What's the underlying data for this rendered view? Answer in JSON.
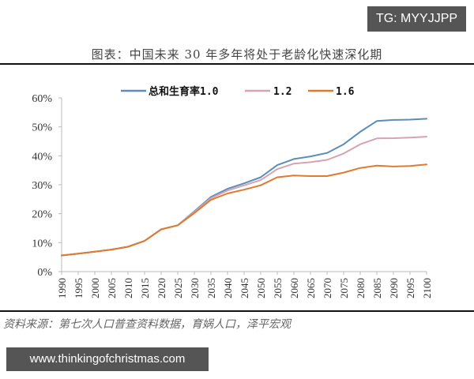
{
  "watermarks": {
    "top": "TG: MYYJJPP",
    "bottom": "www.thinkingofchristmas.com"
  },
  "figure": {
    "title": "图表：中国未来 30 年多年将处于老龄化快速深化期",
    "source": "资料来源：第七次人口普查资料数据，育娲人口，泽平宏观"
  },
  "chart_data": {
    "type": "line",
    "title": "图表：中国未来 30 年多年将处于老龄化快速深化期",
    "xlabel": "",
    "ylabel": "",
    "ylim": [
      0,
      60
    ],
    "yticks": [
      "0%",
      "10%",
      "20%",
      "30%",
      "40%",
      "50%",
      "60%"
    ],
    "x": [
      1990,
      1995,
      2000,
      2005,
      2010,
      2015,
      2020,
      2025,
      2030,
      2035,
      2040,
      2045,
      2050,
      2055,
      2060,
      2065,
      2070,
      2075,
      2080,
      2085,
      2090,
      2095,
      2100
    ],
    "xtick_labels": [
      "1990",
      "1995",
      "2000",
      "2005",
      "2010",
      "2015",
      "2020",
      "2025",
      "2030",
      "2035",
      "2040",
      "2045",
      "2050",
      "2055",
      "2060",
      "2065",
      "2070",
      "2075",
      "2080",
      "2085",
      "2090",
      "2095",
      "2100"
    ],
    "grid": false,
    "legend_position": "top",
    "series": [
      {
        "name": "总和生育率1.0",
        "color": "#5b8db8",
        "values": [
          5.6,
          6.2,
          6.9,
          7.6,
          8.6,
          10.6,
          14.6,
          16.0,
          20.8,
          25.8,
          28.6,
          30.5,
          32.6,
          36.8,
          38.9,
          39.8,
          41.0,
          44.0,
          48.3,
          52.0,
          52.4,
          52.5,
          52.8
        ]
      },
      {
        "name": "1.2",
        "color": "#d4a3b4",
        "values": [
          5.6,
          6.2,
          6.9,
          7.6,
          8.6,
          10.6,
          14.6,
          16.0,
          20.6,
          25.4,
          28.0,
          29.8,
          31.6,
          35.4,
          37.3,
          37.8,
          38.6,
          40.8,
          44.0,
          46.0,
          46.1,
          46.3,
          46.6
        ]
      },
      {
        "name": "1.6",
        "color": "#e07a2e",
        "values": [
          5.6,
          6.2,
          6.9,
          7.6,
          8.6,
          10.6,
          14.6,
          16.0,
          20.2,
          24.8,
          27.0,
          28.3,
          29.8,
          32.6,
          33.2,
          33.0,
          33.0,
          34.2,
          35.8,
          36.6,
          36.3,
          36.5,
          37.0
        ]
      }
    ]
  }
}
